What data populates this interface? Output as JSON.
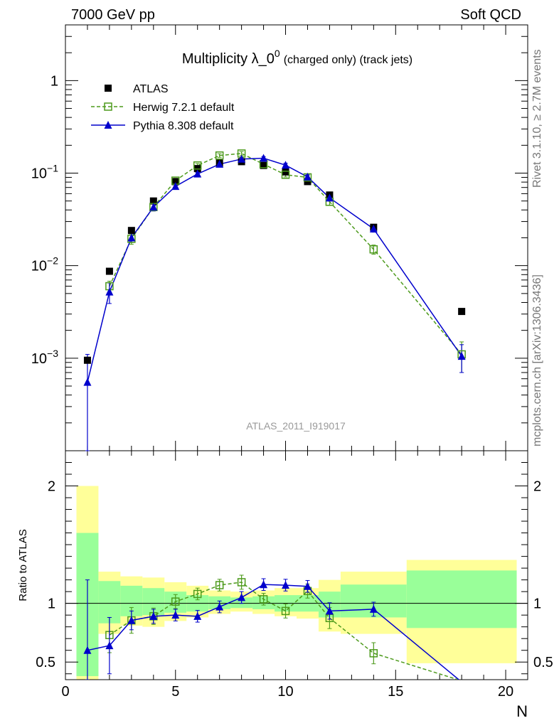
{
  "header": {
    "left": "7000 GeV pp",
    "right": "Soft QCD"
  },
  "side_labels": {
    "rivet": "Rivet 3.1.10, ≥ 2.7M events",
    "mcplots": "mcplots.cern.ch [arXiv:1306.3436]"
  },
  "chart_data": {
    "type": "scatter",
    "title": "Multiplicity λ_0",
    "title_sup": "0",
    "title_suffix": "(charged only) (track jets)",
    "watermark": "ATLAS_2011_I919017",
    "xlabel": "N",
    "xlim": [
      0,
      21
    ],
    "x_ticks": [
      "0",
      "5",
      "10",
      "15",
      "20"
    ],
    "main": {
      "ylabel": "",
      "ylog": true,
      "ylim": [
        0.0001,
        4
      ],
      "y_ticks": [
        {
          "base": "10",
          "exp": "−3"
        },
        {
          "base": "10",
          "exp": "−2"
        },
        {
          "base": "10",
          "exp": "−1"
        },
        {
          "base": "1",
          "exp": ""
        }
      ]
    },
    "ratio": {
      "ylabel": "Ratio to ATLAS",
      "ylim": [
        0.35,
        2.3
      ],
      "y_ticks": [
        "0.5",
        "1",
        "2"
      ]
    },
    "legend": {
      "placement": "top-left",
      "entries": [
        "ATLAS",
        "Herwig 7.2.1 default",
        "Pythia 8.308 default"
      ]
    },
    "series": [
      {
        "name": "ATLAS",
        "color": "#000000",
        "marker": "filled-square",
        "x": [
          1,
          2,
          3,
          4,
          5,
          6,
          7,
          8,
          9,
          10,
          11,
          12,
          14,
          18
        ],
        "y": [
          0.00095,
          0.0087,
          0.024,
          0.05,
          0.081,
          0.112,
          0.128,
          0.133,
          0.121,
          0.103,
          0.081,
          0.058,
          0.026,
          0.0032
        ],
        "bins": [
          [
            0.5,
            1.5
          ],
          [
            1.5,
            2.5
          ],
          [
            2.5,
            3.5
          ],
          [
            3.5,
            4.5
          ],
          [
            4.5,
            5.5
          ],
          [
            5.5,
            6.5
          ],
          [
            6.5,
            7.5
          ],
          [
            7.5,
            8.5
          ],
          [
            8.5,
            9.5
          ],
          [
            9.5,
            10.5
          ],
          [
            10.5,
            11.5
          ],
          [
            11.5,
            12.5
          ],
          [
            12.5,
            15.5
          ],
          [
            15.5,
            20.5
          ]
        ],
        "band_inner": [
          [
            0.38,
            1.6
          ],
          [
            0.83,
            1.19
          ],
          [
            0.89,
            1.15
          ],
          [
            0.9,
            1.13
          ],
          [
            0.92,
            1.1
          ],
          [
            0.93,
            1.07
          ],
          [
            0.95,
            1.06
          ],
          [
            0.96,
            1.05
          ],
          [
            0.95,
            1.06
          ],
          [
            0.93,
            1.07
          ],
          [
            0.93,
            1.07
          ],
          [
            0.88,
            1.1
          ],
          [
            0.88,
            1.16
          ],
          [
            0.79,
            1.28
          ]
        ],
        "band_outer": [
          [
            0.32,
            2.0
          ],
          [
            0.74,
            1.27
          ],
          [
            0.81,
            1.23
          ],
          [
            0.8,
            1.22
          ],
          [
            0.85,
            1.18
          ],
          [
            0.88,
            1.15
          ],
          [
            0.91,
            1.11
          ],
          [
            0.93,
            1.1
          ],
          [
            0.91,
            1.11
          ],
          [
            0.89,
            1.13
          ],
          [
            0.87,
            1.13
          ],
          [
            0.76,
            1.2
          ],
          [
            0.74,
            1.27
          ],
          [
            0.49,
            1.37
          ]
        ]
      },
      {
        "name": "Herwig 7.2.1 default",
        "color": "#4d9a1c",
        "marker": "open-square",
        "dashed": true,
        "x": [
          2,
          3,
          4,
          5,
          6,
          7,
          8,
          9,
          10,
          11,
          12,
          14,
          18
        ],
        "y": [
          0.006,
          0.0195,
          0.043,
          0.083,
          0.121,
          0.155,
          0.163,
          0.125,
          0.096,
          0.09,
          0.049,
          0.015,
          0.0011
        ],
        "yerr": [
          0.0008,
          0.0025,
          0.004,
          0.005,
          0.006,
          0.007,
          0.008,
          0.006,
          0.005,
          0.005,
          0.004,
          0.0017,
          0.0004
        ],
        "ratio": [
          0.73,
          0.855,
          0.89,
          1.015,
          1.08,
          1.155,
          1.18,
          1.035,
          0.935,
          1.105,
          0.875,
          0.575,
          0.34
        ],
        "ratio_err": [
          0.15,
          0.11,
          0.07,
          0.06,
          0.05,
          0.05,
          0.06,
          0.05,
          0.06,
          0.06,
          0.09,
          0.09,
          0.1
        ]
      },
      {
        "name": "Pythia 8.308 default",
        "color": "#0000cc",
        "marker": "filled-triangle",
        "dashed": false,
        "x": [
          1,
          2,
          3,
          4,
          5,
          6,
          7,
          8,
          9,
          10,
          11,
          12,
          14,
          18
        ],
        "y": [
          0.00055,
          0.0052,
          0.02,
          0.043,
          0.072,
          0.098,
          0.125,
          0.142,
          0.145,
          0.122,
          0.091,
          0.054,
          0.025,
          0.00105
        ],
        "yerr": [
          0.00055,
          0.0013,
          0.0022,
          0.004,
          0.004,
          0.004,
          0.005,
          0.006,
          0.006,
          0.006,
          0.005,
          0.004,
          0.002,
          0.00035
        ],
        "ratio": [
          0.6,
          0.64,
          0.855,
          0.89,
          0.9,
          0.89,
          0.97,
          1.05,
          1.16,
          1.155,
          1.145,
          0.935,
          0.95,
          0.33
        ],
        "ratio_err": [
          0.6,
          0.24,
          0.08,
          0.06,
          0.05,
          0.05,
          0.05,
          0.05,
          0.05,
          0.05,
          0.05,
          0.07,
          0.06,
          0.1
        ]
      }
    ]
  }
}
